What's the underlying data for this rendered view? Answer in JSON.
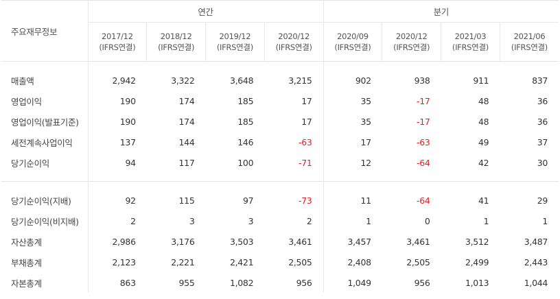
{
  "header": {
    "label_head": "주요재무정보",
    "groups": {
      "annual": "연간",
      "quarterly": "분기"
    },
    "periods": [
      {
        "date": "2017/12",
        "basis": "(IFRS연결)"
      },
      {
        "date": "2018/12",
        "basis": "(IFRS연결)"
      },
      {
        "date": "2019/12",
        "basis": "(IFRS연결)"
      },
      {
        "date": "2020/12",
        "basis": "(IFRS연결)"
      },
      {
        "date": "2020/09",
        "basis": "(IFRS연결)"
      },
      {
        "date": "2020/12",
        "basis": "(IFRS연결)"
      },
      {
        "date": "2021/03",
        "basis": "(IFRS연결)"
      },
      {
        "date": "2021/06",
        "basis": "(IFRS연결)"
      }
    ]
  },
  "rows": [
    {
      "label": "매출액",
      "values": [
        "2,942",
        "3,322",
        "3,648",
        "3,215",
        "902",
        "938",
        "911",
        "837"
      ]
    },
    {
      "label": "영업이익",
      "values": [
        "190",
        "174",
        "185",
        "17",
        "35",
        "-17",
        "48",
        "36"
      ]
    },
    {
      "label": "영업이익(발표기준)",
      "values": [
        "190",
        "174",
        "185",
        "17",
        "35",
        "-17",
        "48",
        "36"
      ]
    },
    {
      "label": "세전계속사업이익",
      "values": [
        "137",
        "144",
        "146",
        "-63",
        "17",
        "-63",
        "49",
        "37"
      ]
    },
    {
      "label": "당기순이익",
      "values": [
        "94",
        "117",
        "100",
        "-71",
        "12",
        "-64",
        "42",
        "30"
      ]
    },
    {
      "label": "당기순이익(지배)",
      "values": [
        "92",
        "115",
        "97",
        "-73",
        "11",
        "-64",
        "41",
        "29"
      ]
    },
    {
      "label": "당기순이익(비지배)",
      "values": [
        "2",
        "3",
        "3",
        "2",
        "1",
        "0",
        "1",
        "1"
      ]
    },
    {
      "label": "자산총계",
      "values": [
        "2,986",
        "3,176",
        "3,503",
        "3,461",
        "3,457",
        "3,461",
        "3,512",
        "3,487"
      ]
    },
    {
      "label": "부채총계",
      "values": [
        "2,123",
        "2,221",
        "2,421",
        "2,505",
        "2,408",
        "2,505",
        "2,499",
        "2,443"
      ]
    },
    {
      "label": "자본총계",
      "values": [
        "863",
        "955",
        "1,082",
        "956",
        "1,049",
        "956",
        "1,013",
        "1,044"
      ]
    }
  ],
  "colors": {
    "negative": "#e02020",
    "text": "#333333",
    "border": "#e3e3e3"
  }
}
